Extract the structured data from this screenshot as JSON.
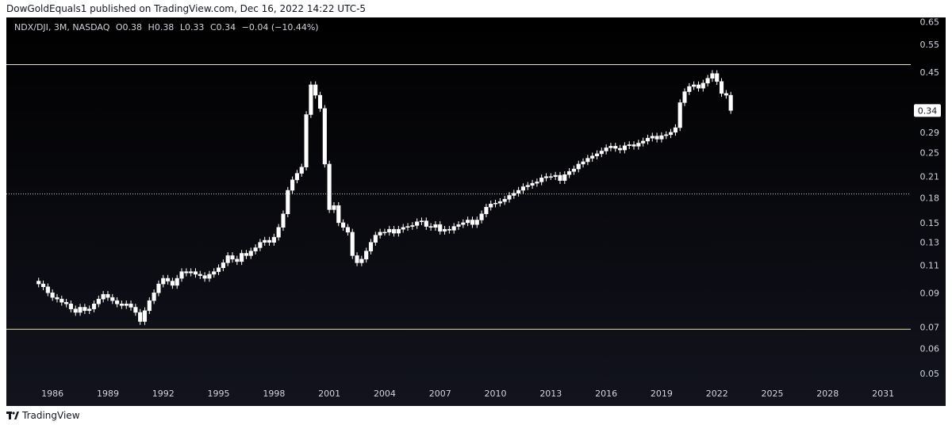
{
  "header": {
    "publisher_line": "DowGoldEquals1 published on TradingView.com, Dec 16, 2022 14:22 UTC-5"
  },
  "legend": {
    "symbol": "NDX/DJI, 3M, NASDAQ",
    "open": "O0.38",
    "high": "H0.38",
    "low": "L0.33",
    "close": "C0.34",
    "change": "−0.04 (−10.44%)"
  },
  "footer": {
    "brand": "TradingView",
    "logo_icon": "tradingview-logo-icon"
  },
  "colors": {
    "background_top": "#000000",
    "background_bottom": "#12131d",
    "candle_up": "#ffffff",
    "candle_down": "#ffffff",
    "resistance_line": "#e8e6b0",
    "support_line": "#e8e6b0",
    "dotted_line": "#c8c8c8",
    "text": "#d1d4dc"
  },
  "chart_data": {
    "type": "candlestick",
    "symbol": "NDX/DJI",
    "interval": "3M",
    "scale": "log",
    "ylim": [
      0.048,
      0.67
    ],
    "xlim": [
      1983.5,
      2032.5
    ],
    "y_ticks": [
      0.65,
      0.55,
      0.45,
      0.34,
      0.29,
      0.25,
      0.21,
      0.18,
      0.15,
      0.13,
      0.11,
      0.09,
      0.07,
      0.06,
      0.05
    ],
    "y_tick_labels": [
      "0.65",
      "0.55",
      "0.45",
      "0.34",
      "0.29",
      "0.25",
      "0.21",
      "0.18",
      "0.15",
      "0.13",
      "0.11",
      "0.09",
      "0.07",
      "0.06",
      "0.05"
    ],
    "x_ticks": [
      1986,
      1989,
      1992,
      1995,
      1998,
      2001,
      2004,
      2007,
      2010,
      2013,
      2016,
      2019,
      2022,
      2025,
      2028,
      2031
    ],
    "x_tick_labels": [
      "1986",
      "1989",
      "1992",
      "1995",
      "1998",
      "2001",
      "2004",
      "2007",
      "2010",
      "2013",
      "2016",
      "2019",
      "2022",
      "2025",
      "2028",
      "2031"
    ],
    "last_price_label": "0.34",
    "horizontal_lines": [
      {
        "name": "resistance",
        "value": 0.475,
        "style": "solid"
      },
      {
        "name": "support",
        "value": 0.069,
        "style": "solid"
      },
      {
        "name": "midline",
        "value": 0.185,
        "style": "dotted"
      }
    ],
    "grid": false,
    "close_series": [
      [
        1985.0,
        0.098
      ],
      [
        1985.25,
        0.096
      ],
      [
        1985.5,
        0.094
      ],
      [
        1985.75,
        0.09
      ],
      [
        1986.0,
        0.087
      ],
      [
        1986.25,
        0.086
      ],
      [
        1986.5,
        0.084
      ],
      [
        1986.75,
        0.083
      ],
      [
        1987.0,
        0.08
      ],
      [
        1987.25,
        0.078
      ],
      [
        1987.5,
        0.081
      ],
      [
        1987.75,
        0.079
      ],
      [
        1988.0,
        0.08
      ],
      [
        1988.25,
        0.083
      ],
      [
        1988.5,
        0.086
      ],
      [
        1988.75,
        0.089
      ],
      [
        1989.0,
        0.087
      ],
      [
        1989.25,
        0.085
      ],
      [
        1989.5,
        0.083
      ],
      [
        1989.75,
        0.082
      ],
      [
        1990.0,
        0.083
      ],
      [
        1990.25,
        0.081
      ],
      [
        1990.5,
        0.078
      ],
      [
        1990.75,
        0.073
      ],
      [
        1991.0,
        0.079
      ],
      [
        1991.25,
        0.085
      ],
      [
        1991.5,
        0.09
      ],
      [
        1991.75,
        0.096
      ],
      [
        1992.0,
        0.1
      ],
      [
        1992.25,
        0.098
      ],
      [
        1992.5,
        0.095
      ],
      [
        1992.75,
        0.1
      ],
      [
        1993.0,
        0.105
      ],
      [
        1993.25,
        0.104
      ],
      [
        1993.5,
        0.105
      ],
      [
        1993.75,
        0.103
      ],
      [
        1994.0,
        0.102
      ],
      [
        1994.25,
        0.1
      ],
      [
        1994.5,
        0.103
      ],
      [
        1994.75,
        0.105
      ],
      [
        1995.0,
        0.108
      ],
      [
        1995.25,
        0.112
      ],
      [
        1995.5,
        0.118
      ],
      [
        1995.75,
        0.115
      ],
      [
        1996.0,
        0.113
      ],
      [
        1996.25,
        0.12
      ],
      [
        1996.5,
        0.118
      ],
      [
        1996.75,
        0.122
      ],
      [
        1997.0,
        0.125
      ],
      [
        1997.25,
        0.13
      ],
      [
        1997.5,
        0.132
      ],
      [
        1997.75,
        0.13
      ],
      [
        1998.0,
        0.135
      ],
      [
        1998.25,
        0.145
      ],
      [
        1998.5,
        0.16
      ],
      [
        1998.75,
        0.19
      ],
      [
        1999.0,
        0.205
      ],
      [
        1999.25,
        0.215
      ],
      [
        1999.5,
        0.225
      ],
      [
        1999.75,
        0.33
      ],
      [
        2000.0,
        0.41
      ],
      [
        2000.25,
        0.38
      ],
      [
        2000.5,
        0.345
      ],
      [
        2000.75,
        0.23
      ],
      [
        2001.0,
        0.165
      ],
      [
        2001.25,
        0.17
      ],
      [
        2001.5,
        0.15
      ],
      [
        2001.75,
        0.145
      ],
      [
        2002.0,
        0.14
      ],
      [
        2002.25,
        0.118
      ],
      [
        2002.5,
        0.112
      ],
      [
        2002.75,
        0.115
      ],
      [
        2003.0,
        0.122
      ],
      [
        2003.25,
        0.13
      ],
      [
        2003.5,
        0.137
      ],
      [
        2003.75,
        0.14
      ],
      [
        2004.0,
        0.14
      ],
      [
        2004.25,
        0.143
      ],
      [
        2004.5,
        0.139
      ],
      [
        2004.75,
        0.143
      ],
      [
        2005.0,
        0.145
      ],
      [
        2005.25,
        0.146
      ],
      [
        2005.5,
        0.147
      ],
      [
        2005.75,
        0.151
      ],
      [
        2006.0,
        0.152
      ],
      [
        2006.25,
        0.146
      ],
      [
        2006.5,
        0.145
      ],
      [
        2006.75,
        0.148
      ],
      [
        2007.0,
        0.141
      ],
      [
        2007.25,
        0.143
      ],
      [
        2007.5,
        0.142
      ],
      [
        2007.75,
        0.146
      ],
      [
        2008.0,
        0.148
      ],
      [
        2008.25,
        0.15
      ],
      [
        2008.5,
        0.153
      ],
      [
        2008.75,
        0.148
      ],
      [
        2009.0,
        0.153
      ],
      [
        2009.25,
        0.16
      ],
      [
        2009.5,
        0.168
      ],
      [
        2009.75,
        0.172
      ],
      [
        2010.0,
        0.173
      ],
      [
        2010.25,
        0.175
      ],
      [
        2010.5,
        0.178
      ],
      [
        2010.75,
        0.183
      ],
      [
        2011.0,
        0.186
      ],
      [
        2011.25,
        0.19
      ],
      [
        2011.5,
        0.195
      ],
      [
        2011.75,
        0.197
      ],
      [
        2012.0,
        0.2
      ],
      [
        2012.25,
        0.202
      ],
      [
        2012.5,
        0.208
      ],
      [
        2012.75,
        0.21
      ],
      [
        2013.0,
        0.21
      ],
      [
        2013.25,
        0.212
      ],
      [
        2013.5,
        0.204
      ],
      [
        2013.75,
        0.213
      ],
      [
        2014.0,
        0.218
      ],
      [
        2014.25,
        0.222
      ],
      [
        2014.5,
        0.23
      ],
      [
        2014.75,
        0.234
      ],
      [
        2015.0,
        0.24
      ],
      [
        2015.25,
        0.244
      ],
      [
        2015.5,
        0.248
      ],
      [
        2015.75,
        0.253
      ],
      [
        2016.0,
        0.259
      ],
      [
        2016.25,
        0.262
      ],
      [
        2016.5,
        0.258
      ],
      [
        2016.75,
        0.255
      ],
      [
        2017.0,
        0.263
      ],
      [
        2017.25,
        0.265
      ],
      [
        2017.5,
        0.262
      ],
      [
        2017.75,
        0.268
      ],
      [
        2018.0,
        0.272
      ],
      [
        2018.25,
        0.278
      ],
      [
        2018.5,
        0.282
      ],
      [
        2018.75,
        0.276
      ],
      [
        2019.0,
        0.283
      ],
      [
        2019.25,
        0.285
      ],
      [
        2019.5,
        0.29
      ],
      [
        2019.75,
        0.3
      ],
      [
        2020.0,
        0.36
      ],
      [
        2020.25,
        0.39
      ],
      [
        2020.5,
        0.405
      ],
      [
        2020.75,
        0.41
      ],
      [
        2021.0,
        0.4
      ],
      [
        2021.25,
        0.415
      ],
      [
        2021.5,
        0.43
      ],
      [
        2021.75,
        0.445
      ],
      [
        2022.0,
        0.42
      ],
      [
        2022.25,
        0.385
      ],
      [
        2022.5,
        0.38
      ],
      [
        2022.75,
        0.34
      ]
    ]
  }
}
